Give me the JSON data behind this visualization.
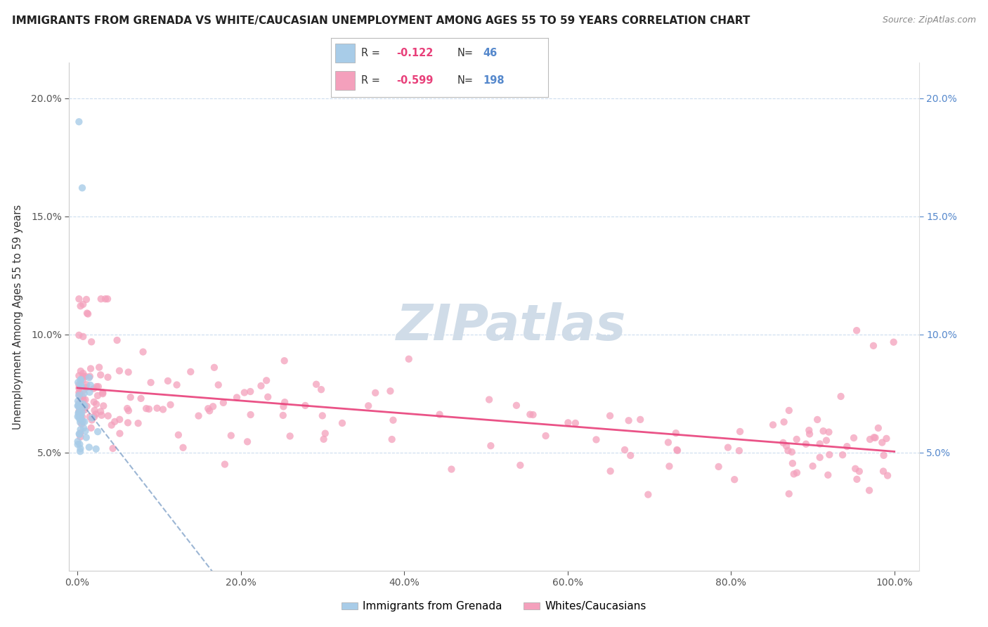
{
  "title": "IMMIGRANTS FROM GRENADA VS WHITE/CAUCASIAN UNEMPLOYMENT AMONG AGES 55 TO 59 YEARS CORRELATION CHART",
  "source": "Source: ZipAtlas.com",
  "ylabel": "Unemployment Among Ages 55 to 59 years",
  "legend_blue_label": "Immigrants from Grenada",
  "legend_pink_label": "Whites/Caucasians",
  "r_blue": -0.122,
  "n_blue": 46,
  "r_pink": -0.599,
  "n_pink": 198,
  "blue_color": "#a8cce8",
  "pink_color": "#f4a0bc",
  "blue_line_color": "#3a6eaa",
  "pink_line_color": "#e8407a",
  "right_axis_color": "#5588cc",
  "watermark_color": "#d0dce8",
  "title_fontsize": 11,
  "source_fontsize": 9,
  "y_min": 0.0,
  "y_max": 0.215,
  "x_min": -0.01,
  "x_max": 1.03,
  "y_tick_positions": [
    0.05,
    0.1,
    0.15,
    0.2
  ],
  "y_tick_labels": [
    "5.0%",
    "10.0%",
    "15.0%",
    "20.0%"
  ],
  "x_tick_positions": [
    0.0,
    0.2,
    0.4,
    0.6,
    0.8,
    1.0
  ],
  "x_tick_labels": [
    "0.0%",
    "20.0%",
    "40.0%",
    "60.0%",
    "80.0%",
    "100.0%"
  ]
}
